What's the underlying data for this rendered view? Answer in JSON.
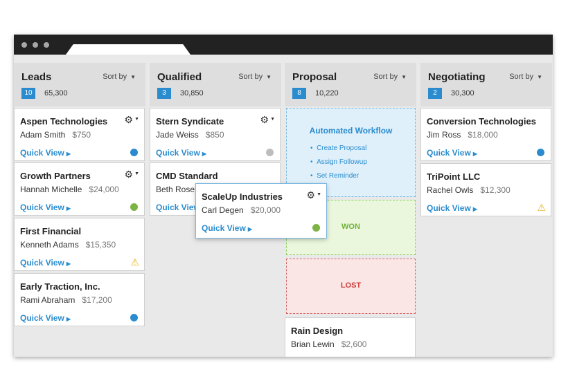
{
  "columns": [
    {
      "title": "Leads",
      "sort_label": "Sort by",
      "count": "10",
      "total": "65,300",
      "cards": [
        {
          "name": "Aspen Technologies",
          "contact": "Adam Smith",
          "value": "$750",
          "quick_view": "Quick View",
          "status": "blue",
          "gear": true
        },
        {
          "name": "Growth Partners",
          "contact": "Hannah Michelle",
          "value": "$24,000",
          "quick_view": "Quick View",
          "status": "green",
          "gear": true
        },
        {
          "name": "First Financial",
          "contact": "Kenneth Adams",
          "value": "$15,350",
          "quick_view": "Quick View",
          "status": "warning"
        },
        {
          "name": "Early Traction, Inc.",
          "contact": "Rami Abraham",
          "value": "$17,200",
          "quick_view": "Quick View",
          "status": "blue"
        }
      ]
    },
    {
      "title": "Qualified",
      "sort_label": "Sort by",
      "count": "3",
      "total": "30,850",
      "cards": [
        {
          "name": "Stern Syndicate",
          "contact": "Jade Weiss",
          "value": "$850",
          "quick_view": "Quick View",
          "status": "gray",
          "gear": true
        },
        {
          "name": "CMD Standard",
          "contact": "Beth Rose",
          "value": "",
          "quick_view": "Quick View",
          "status": "none"
        }
      ]
    },
    {
      "title": "Proposal",
      "sort_label": "Sort by",
      "count": "8",
      "total": "10,220",
      "automation": {
        "title": "Automated Workflow",
        "items": [
          "Create Proposal",
          "Assign Followup",
          "Set Reminder"
        ]
      },
      "won_label": "WON",
      "lost_label": "LOST",
      "cards": [
        {
          "name": "Rain Design",
          "contact": "Brian Lewin",
          "value": "$2,600"
        }
      ]
    },
    {
      "title": "Negotiating",
      "sort_label": "Sort by",
      "count": "2",
      "total": "30,300",
      "cards": [
        {
          "name": "Conversion Technologies",
          "contact": "Jim Ross",
          "value": "$18,000",
          "quick_view": "Quick View",
          "status": "blue"
        },
        {
          "name": "TriPoint LLC",
          "contact": "Rachel Owls",
          "value": "$12,300",
          "quick_view": "Quick View",
          "status": "warning"
        }
      ]
    }
  ],
  "dragging_card": {
    "name": "ScaleUp Industries",
    "contact": "Carl Degen",
    "value": "$20,000",
    "quick_view": "Quick View",
    "status": "green"
  },
  "status_colors": {
    "blue": "#2a8ccf",
    "green": "#7cb342",
    "gray": "#bdbdbd",
    "warning": "#e7b416"
  }
}
